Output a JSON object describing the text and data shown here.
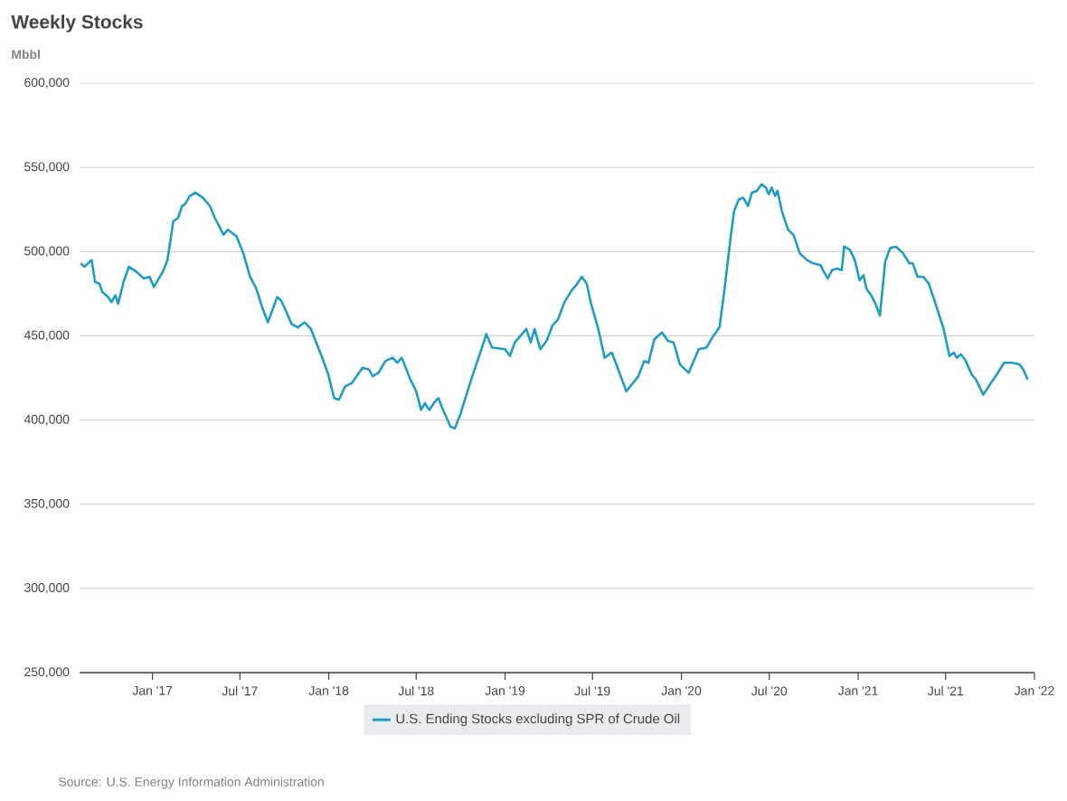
{
  "chart_data": {
    "type": "line",
    "title": "Weekly Stocks",
    "ylabel": "Mbbl",
    "annotations": [
      "Source: U.S. Energy Information Administration"
    ],
    "x": [
      "2016-08-05",
      "2016-08-13",
      "2016-08-28",
      "2016-09-04",
      "2016-09-13",
      "2016-09-19",
      "2016-10-01",
      "2016-10-08",
      "2016-10-16",
      "2016-10-22",
      "2016-11-02",
      "2016-11-13",
      "2016-11-29",
      "2016-12-14",
      "2016-12-26",
      "2017-01-04",
      "2017-01-24",
      "2017-02-01",
      "2017-02-13",
      "2017-02-23",
      "2017-03-03",
      "2017-03-09",
      "2017-03-19",
      "2017-03-31",
      "2017-04-15",
      "2017-04-30",
      "2017-05-10",
      "2017-05-28",
      "2017-06-06",
      "2017-06-24",
      "2017-07-08",
      "2017-07-22",
      "2017-08-04",
      "2017-08-16",
      "2017-08-28",
      "2017-09-16",
      "2017-09-24",
      "2017-10-04",
      "2017-10-16",
      "2017-10-29",
      "2017-11-12",
      "2017-11-25",
      "2017-12-17",
      "2017-12-31",
      "2018-01-12",
      "2018-01-22",
      "2018-02-04",
      "2018-02-18",
      "2018-03-12",
      "2018-03-25",
      "2018-04-02",
      "2018-04-14",
      "2018-04-28",
      "2018-05-13",
      "2018-05-23",
      "2018-06-01",
      "2018-06-19",
      "2018-07-01",
      "2018-07-11",
      "2018-07-19",
      "2018-07-28",
      "2018-08-09",
      "2018-08-16",
      "2018-08-24",
      "2018-09-10",
      "2018-09-19",
      "2018-10-01",
      "2018-10-25",
      "2018-11-13",
      "2018-11-23",
      "2018-12-05",
      "2019-01-01",
      "2019-01-11",
      "2019-01-21",
      "2019-02-14",
      "2019-02-23",
      "2019-03-03",
      "2019-03-15",
      "2019-03-28",
      "2019-04-09",
      "2019-04-21",
      "2019-05-04",
      "2019-05-19",
      "2019-05-28",
      "2019-06-09",
      "2019-06-19",
      "2019-06-28",
      "2019-07-13",
      "2019-07-26",
      "2019-08-10",
      "2019-08-18",
      "2019-09-09",
      "2019-10-04",
      "2019-10-16",
      "2019-10-25",
      "2019-11-06",
      "2019-11-22",
      "2019-12-04",
      "2019-12-16",
      "2019-12-29",
      "2020-01-16",
      "2020-02-06",
      "2020-02-22",
      "2020-03-05",
      "2020-03-20",
      "2020-03-30",
      "2020-04-11",
      "2020-04-19",
      "2020-04-29",
      "2020-05-08",
      "2020-05-18",
      "2020-05-26",
      "2020-06-05",
      "2020-06-15",
      "2020-06-24",
      "2020-06-30",
      "2020-07-06",
      "2020-07-13",
      "2020-07-18",
      "2020-07-27",
      "2020-08-09",
      "2020-08-20",
      "2020-09-02",
      "2020-09-17",
      "2020-09-30",
      "2020-10-15",
      "2020-10-22",
      "2020-10-30",
      "2020-11-08",
      "2020-11-18",
      "2020-11-28",
      "2020-12-03",
      "2020-12-15",
      "2020-12-25",
      "2021-01-04",
      "2021-01-12",
      "2021-01-18",
      "2021-01-28",
      "2021-02-06",
      "2021-02-15",
      "2021-02-26",
      "2021-03-08",
      "2021-03-20",
      "2021-04-04",
      "2021-04-17",
      "2021-04-24",
      "2021-05-04",
      "2021-05-16",
      "2021-05-27",
      "2021-06-08",
      "2021-06-27",
      "2021-07-09",
      "2021-07-18",
      "2021-07-24",
      "2021-08-02",
      "2021-08-12",
      "2021-08-24",
      "2021-09-02",
      "2021-09-17",
      "2021-10-03",
      "2021-10-15",
      "2021-10-30",
      "2021-11-15",
      "2021-12-01",
      "2021-12-09",
      "2021-12-18"
    ],
    "series": [
      {
        "name": "U.S. Ending Stocks excluding SPR of Crude Oil",
        "color": "#1f9bc8",
        "values": [
          493000,
          491000,
          495000,
          482000,
          481000,
          476000,
          473000,
          470000,
          474000,
          469000,
          482000,
          491000,
          488000,
          484000,
          485000,
          479000,
          489000,
          495000,
          518000,
          520000,
          527000,
          528000,
          533000,
          535000,
          532000,
          527000,
          520000,
          510000,
          513000,
          509000,
          499000,
          485000,
          478000,
          467000,
          458000,
          473000,
          471000,
          465000,
          457000,
          455000,
          458000,
          454000,
          438000,
          427000,
          413000,
          412000,
          420000,
          422000,
          431000,
          430000,
          426000,
          428000,
          435000,
          437000,
          434000,
          437000,
          424000,
          417000,
          406000,
          410000,
          406000,
          411000,
          413000,
          407000,
          396000,
          395000,
          404000,
          426000,
          442000,
          451000,
          443000,
          442000,
          438000,
          446000,
          454000,
          446000,
          454000,
          442000,
          447000,
          456000,
          460000,
          470000,
          477000,
          480000,
          485000,
          481000,
          469000,
          454000,
          437000,
          440000,
          434000,
          417000,
          426000,
          435000,
          434000,
          448000,
          452000,
          447000,
          446000,
          433000,
          428000,
          442000,
          443000,
          449000,
          455000,
          477000,
          506000,
          524000,
          531000,
          532000,
          527000,
          535000,
          536000,
          540000,
          538000,
          534000,
          538000,
          533000,
          536000,
          524000,
          513000,
          510000,
          499000,
          495000,
          493000,
          492000,
          488000,
          484000,
          489000,
          490000,
          489000,
          503000,
          501000,
          495000,
          483000,
          486000,
          478000,
          474000,
          469000,
          462000,
          494000,
          502000,
          503000,
          499000,
          493000,
          493000,
          485000,
          485000,
          481000,
          471000,
          454000,
          438000,
          440000,
          437000,
          439000,
          435000,
          427000,
          424000,
          415000,
          422000,
          427000,
          434000,
          434000,
          433000,
          430000,
          424000
        ]
      }
    ],
    "xlim": [
      "2016-08-03",
      "2022-01-01"
    ],
    "xticks": [
      {
        "value": "2017-01-01",
        "label": "Jan '17"
      },
      {
        "value": "2017-07-01",
        "label": "Jul '17"
      },
      {
        "value": "2018-01-01",
        "label": "Jan '18"
      },
      {
        "value": "2018-07-01",
        "label": "Jul '18"
      },
      {
        "value": "2019-01-01",
        "label": "Jan '19"
      },
      {
        "value": "2019-07-01",
        "label": "Jul '19"
      },
      {
        "value": "2020-01-01",
        "label": "Jan '20"
      },
      {
        "value": "2020-07-01",
        "label": "Jul '20"
      },
      {
        "value": "2021-01-01",
        "label": "Jan '21"
      },
      {
        "value": "2021-07-01",
        "label": "Jul '21"
      },
      {
        "value": "2022-01-01",
        "label": "Jan '22"
      }
    ],
    "ylim": [
      250000,
      600000
    ],
    "yticks": [
      {
        "value": 250000,
        "label": "250,000"
      },
      {
        "value": 300000,
        "label": "300,000"
      },
      {
        "value": 350000,
        "label": "350,000"
      },
      {
        "value": 400000,
        "label": "400,000"
      },
      {
        "value": 450000,
        "label": "450,000"
      },
      {
        "value": 500000,
        "label": "500,000"
      },
      {
        "value": 550000,
        "label": "550,000"
      },
      {
        "value": 600000,
        "label": "600,000"
      }
    ],
    "grid": "y",
    "legend": "bottom",
    "marker": "none",
    "line_style": "solid"
  }
}
